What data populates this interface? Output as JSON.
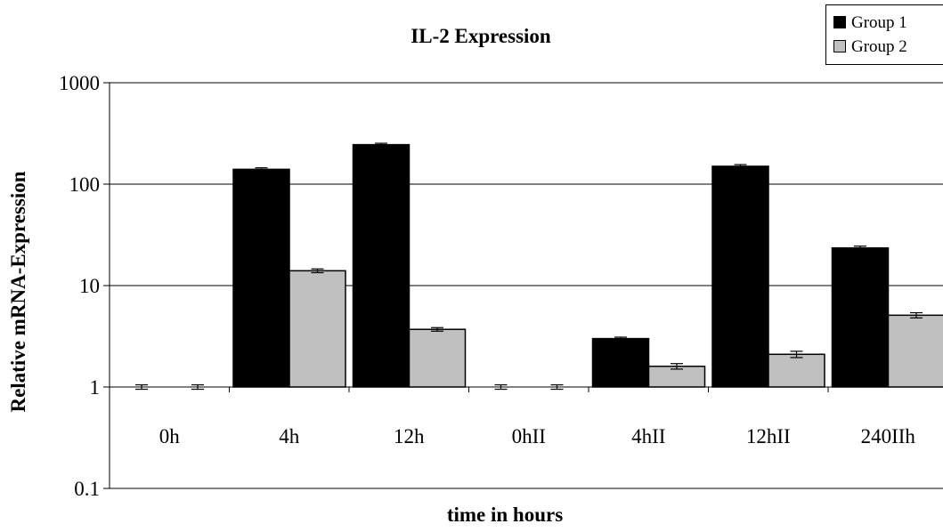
{
  "chart_data": {
    "type": "bar",
    "title": "IL-2 Expression",
    "xlabel": "time in hours",
    "ylabel": "Relative mRNA-Expression",
    "yscale": "log",
    "ylim": [
      0.1,
      1000
    ],
    "yticks": [
      "1000",
      "100",
      "10",
      "1",
      "0.1"
    ],
    "grid": true,
    "legend_position": "top-right",
    "categories": [
      "0h",
      "4h",
      "12h",
      "0hII",
      "4hII",
      "12hII",
      "240IIh"
    ],
    "series": [
      {
        "name": "Group 1",
        "color": "#000000",
        "values": [
          1,
          140,
          245,
          1,
          3,
          150,
          23.5
        ],
        "errors": [
          0.05,
          5,
          8,
          0.05,
          0.1,
          6,
          1
        ]
      },
      {
        "name": "Group 2",
        "color": "#c0c0c0",
        "values": [
          1,
          14,
          3.7,
          1,
          1.6,
          2.1,
          5.1
        ],
        "errors": [
          0.05,
          0.6,
          0.15,
          0.05,
          0.1,
          0.15,
          0.3
        ]
      }
    ]
  }
}
